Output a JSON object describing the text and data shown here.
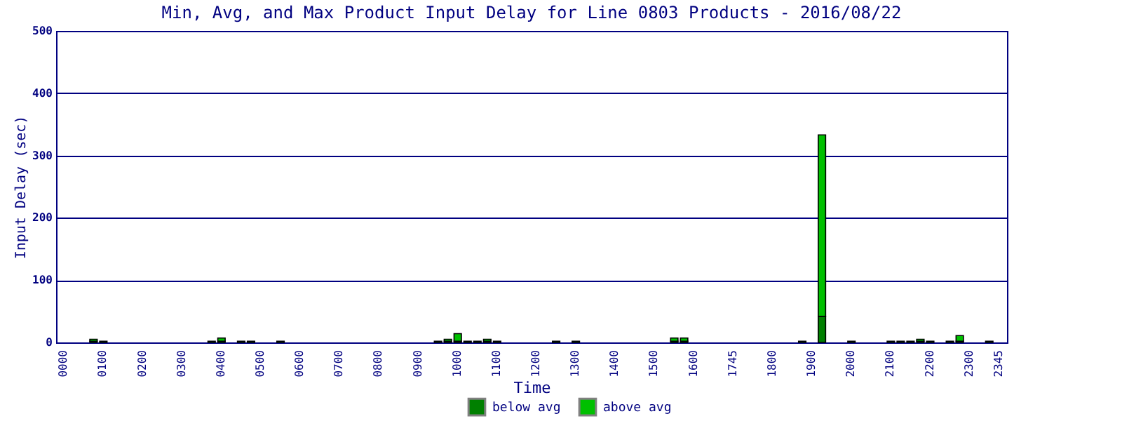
{
  "chart_data": {
    "type": "bar",
    "title": "Min, Avg, and Max Product Input Delay for Line 0803 Products - 2016/08/22",
    "xlabel": "Time",
    "ylabel": "Input Delay (sec)",
    "categories": [
      "0000",
      null,
      null,
      null,
      "0100",
      null,
      null,
      null,
      "0200",
      null,
      null,
      null,
      "0300",
      null,
      null,
      null,
      "0400",
      null,
      null,
      null,
      "0500",
      null,
      null,
      null,
      "0600",
      null,
      null,
      null,
      "0700",
      null,
      null,
      null,
      "0800",
      null,
      null,
      null,
      "0900",
      null,
      null,
      null,
      "1000",
      null,
      null,
      null,
      "1100",
      null,
      null,
      null,
      "1200",
      null,
      null,
      null,
      "1300",
      null,
      null,
      null,
      "1400",
      null,
      null,
      null,
      "1500",
      null,
      null,
      null,
      "1600",
      null,
      null,
      null,
      "1745",
      null,
      null,
      null,
      "1800",
      null,
      null,
      null,
      "1900",
      null,
      null,
      null,
      "2000",
      null,
      null,
      null,
      "2100",
      null,
      null,
      null,
      "2200",
      null,
      null,
      null,
      "2300",
      null,
      null,
      "2345"
    ],
    "stacked": true,
    "series": [
      {
        "name": "below avg",
        "color": "#008000",
        "values": [
          null,
          null,
          null,
          2,
          2,
          null,
          null,
          null,
          null,
          null,
          null,
          null,
          null,
          null,
          null,
          2,
          2,
          null,
          2,
          2,
          null,
          null,
          2,
          null,
          null,
          null,
          null,
          null,
          null,
          null,
          null,
          null,
          null,
          null,
          null,
          null,
          null,
          null,
          2,
          2,
          2,
          2,
          2,
          2,
          2,
          null,
          null,
          null,
          null,
          null,
          2,
          null,
          2,
          null,
          null,
          null,
          null,
          null,
          null,
          null,
          null,
          null,
          2,
          2,
          null,
          null,
          null,
          null,
          null,
          null,
          null,
          null,
          null,
          null,
          null,
          2,
          null,
          42,
          null,
          null,
          2,
          null,
          null,
          null,
          2,
          2,
          2,
          2,
          2,
          null,
          2,
          2,
          null,
          null,
          2,
          null
        ]
      },
      {
        "name": "above avg",
        "color": "#00c000",
        "values": [
          null,
          null,
          null,
          3,
          null,
          null,
          null,
          null,
          null,
          null,
          null,
          null,
          null,
          null,
          null,
          null,
          5,
          null,
          null,
          null,
          null,
          null,
          null,
          null,
          null,
          null,
          null,
          null,
          null,
          null,
          null,
          null,
          null,
          null,
          null,
          null,
          null,
          null,
          null,
          3,
          12,
          null,
          null,
          3,
          null,
          null,
          null,
          null,
          null,
          null,
          null,
          null,
          null,
          null,
          null,
          null,
          null,
          null,
          null,
          null,
          null,
          null,
          5,
          5,
          null,
          null,
          null,
          null,
          null,
          null,
          null,
          null,
          null,
          null,
          null,
          null,
          null,
          291,
          null,
          null,
          null,
          null,
          null,
          null,
          null,
          null,
          null,
          3,
          null,
          null,
          null,
          9,
          null,
          null,
          null,
          null
        ]
      }
    ],
    "ylim": [
      0,
      500
    ],
    "yticks": [
      0,
      100,
      200,
      300,
      400,
      500
    ],
    "grid": "y",
    "legend": "bottom"
  }
}
